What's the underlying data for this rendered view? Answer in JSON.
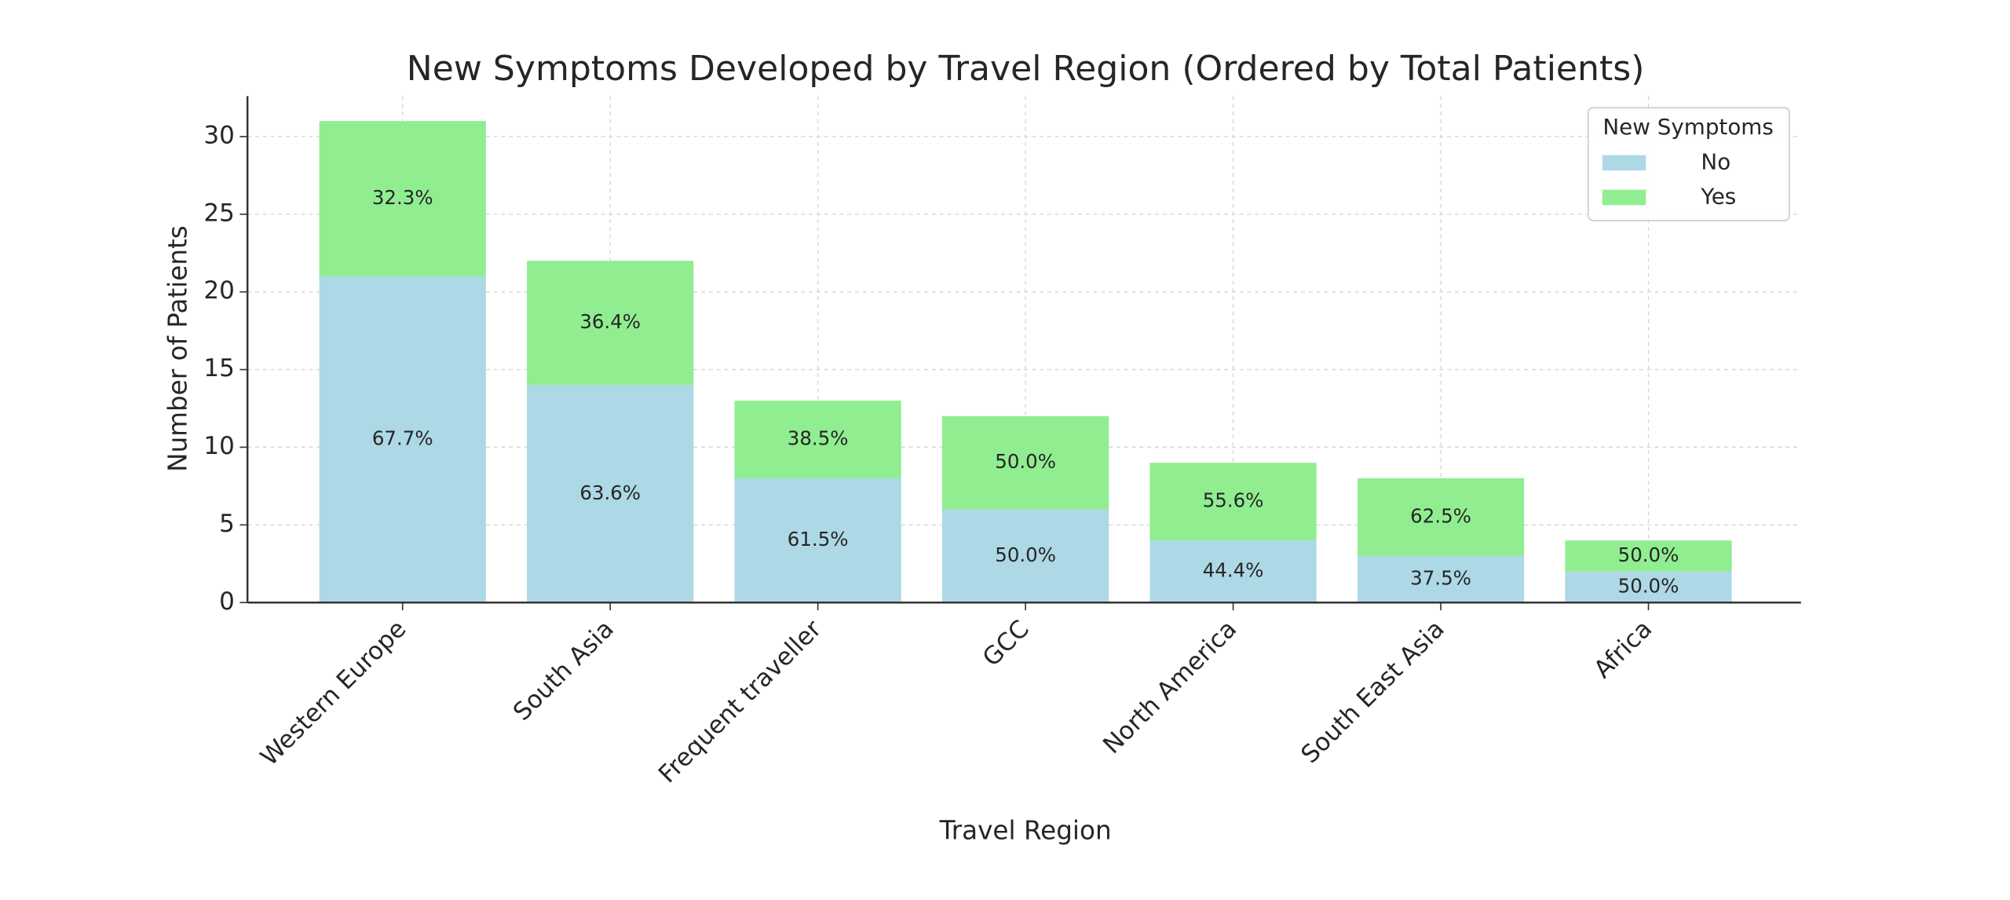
{
  "chart_data": {
    "type": "stacked_bar",
    "title": "New Symptoms Developed by Travel Region (Ordered by Total Patients)",
    "x_label": "Travel Region",
    "y_label": "Number of Patients",
    "categories": [
      "Western Europe",
      "South Asia",
      "Frequent traveller",
      "GCC",
      "North America",
      "South East Asia",
      "Africa"
    ],
    "legend_title": "New Symptoms",
    "legend_position": "upper right",
    "series": [
      {
        "name": "No",
        "color": "#add8e6",
        "values": [
          21,
          14,
          8,
          6,
          4,
          3,
          2
        ],
        "percent_labels": [
          "67.7%",
          "63.6%",
          "61.5%",
          "50.0%",
          "44.4%",
          "37.5%",
          "50.0%"
        ]
      },
      {
        "name": "Yes",
        "color": "#90ee90",
        "values": [
          10,
          8,
          5,
          6,
          5,
          5,
          2
        ],
        "percent_labels": [
          "32.3%",
          "36.4%",
          "38.5%",
          "50.0%",
          "55.6%",
          "62.5%",
          "50.0%"
        ]
      }
    ],
    "ylim": [
      0,
      32.6
    ],
    "yticks": [
      0,
      5,
      10,
      15,
      20,
      25,
      30
    ],
    "grid": true
  }
}
